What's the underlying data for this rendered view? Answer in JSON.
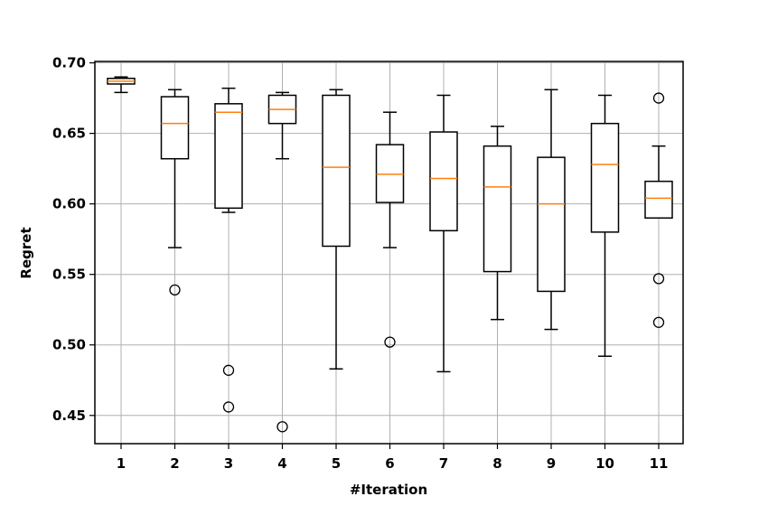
{
  "chart_data": {
    "type": "boxplot",
    "title": "",
    "xlabel": "#Iteration",
    "ylabel": "Regret",
    "categories": [
      "1",
      "2",
      "3",
      "4",
      "5",
      "6",
      "7",
      "8",
      "9",
      "10",
      "11"
    ],
    "yticks": [
      "0.45",
      "0.50",
      "0.55",
      "0.60",
      "0.65",
      "0.70"
    ],
    "ylim": [
      0.43,
      0.701
    ],
    "grid": true,
    "colors": {
      "box": "#000000",
      "median": "#ff7f0e",
      "grid": "#b0b0b0",
      "flier": "#000000"
    },
    "boxes": [
      {
        "whisker_low": 0.679,
        "q1": 0.685,
        "median": 0.687,
        "q3": 0.689,
        "whisker_high": 0.69,
        "fliers": []
      },
      {
        "whisker_low": 0.569,
        "q1": 0.632,
        "median": 0.657,
        "q3": 0.676,
        "whisker_high": 0.681,
        "fliers": [
          0.539
        ]
      },
      {
        "whisker_low": 0.594,
        "q1": 0.597,
        "median": 0.665,
        "q3": 0.671,
        "whisker_high": 0.682,
        "fliers": [
          0.482,
          0.456
        ]
      },
      {
        "whisker_low": 0.632,
        "q1": 0.657,
        "median": 0.667,
        "q3": 0.677,
        "whisker_high": 0.679,
        "fliers": [
          0.442
        ]
      },
      {
        "whisker_low": 0.483,
        "q1": 0.57,
        "median": 0.626,
        "q3": 0.677,
        "whisker_high": 0.681,
        "fliers": []
      },
      {
        "whisker_low": 0.569,
        "q1": 0.601,
        "median": 0.621,
        "q3": 0.642,
        "whisker_high": 0.665,
        "fliers": [
          0.502
        ]
      },
      {
        "whisker_low": 0.481,
        "q1": 0.581,
        "median": 0.618,
        "q3": 0.651,
        "whisker_high": 0.677,
        "fliers": []
      },
      {
        "whisker_low": 0.518,
        "q1": 0.552,
        "median": 0.612,
        "q3": 0.641,
        "whisker_high": 0.655,
        "fliers": []
      },
      {
        "whisker_low": 0.511,
        "q1": 0.538,
        "median": 0.6,
        "q3": 0.633,
        "whisker_high": 0.681,
        "fliers": []
      },
      {
        "whisker_low": 0.492,
        "q1": 0.58,
        "median": 0.628,
        "q3": 0.657,
        "whisker_high": 0.677,
        "fliers": []
      },
      {
        "whisker_low": 0.59,
        "q1": 0.59,
        "median": 0.604,
        "q3": 0.616,
        "whisker_high": 0.641,
        "fliers": [
          0.675,
          0.547,
          0.516
        ]
      }
    ]
  }
}
